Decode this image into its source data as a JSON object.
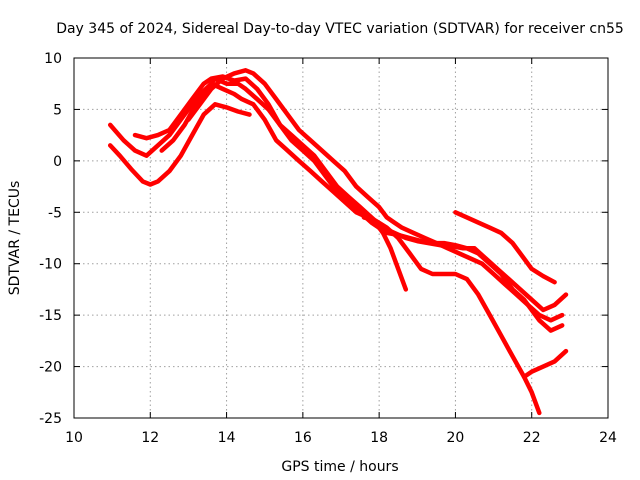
{
  "chart_data": {
    "type": "line",
    "title": "Day 345 of 2024, Sidereal Day-to-day VTEC variation (SDTVAR) for receiver cn55",
    "xlabel": "GPS time / hours",
    "ylabel": "SDTVAR / TECUs",
    "xlim": [
      10,
      24
    ],
    "ylim": [
      -25,
      10
    ],
    "xticks": [
      "10",
      "12",
      "14",
      "16",
      "18",
      "20",
      "22",
      "24"
    ],
    "yticks": [
      "10",
      "5",
      "0",
      "-5",
      "-10",
      "-15",
      "-20",
      "-25"
    ],
    "grid": true,
    "color": "#ff0000",
    "series": [
      {
        "name": "trace-1",
        "x": [
          10.95,
          11.2,
          11.5,
          11.8,
          12.0,
          12.2,
          12.5,
          12.8,
          13.1,
          13.4,
          13.7,
          14.0,
          14.3,
          14.6
        ],
        "y": [
          1.5,
          0.5,
          -0.8,
          -2.0,
          -2.3,
          -2.0,
          -1.0,
          0.5,
          2.5,
          4.5,
          5.5,
          5.2,
          4.8,
          4.5
        ]
      },
      {
        "name": "trace-2",
        "x": [
          10.95,
          11.3,
          11.6,
          11.9,
          12.2,
          12.5,
          12.8,
          13.1,
          13.4,
          13.6,
          13.9,
          14.2,
          14.4,
          14.7,
          15.0,
          15.3,
          15.6,
          15.9,
          16.2,
          16.5,
          16.8,
          17.1,
          17.4,
          17.7,
          17.9,
          18.1,
          18.3,
          18.5,
          18.7
        ],
        "y": [
          3.5,
          2.0,
          1.0,
          0.5,
          1.5,
          2.5,
          4.0,
          5.5,
          6.8,
          7.5,
          7.0,
          6.5,
          6.0,
          5.5,
          4.0,
          2.0,
          1.0,
          0.0,
          -1.0,
          -2.0,
          -3.0,
          -4.0,
          -5.0,
          -5.5,
          -6.0,
          -7.0,
          -8.5,
          -10.5,
          -12.5
        ]
      },
      {
        "name": "trace-3",
        "x": [
          11.6,
          11.9,
          12.2,
          12.5,
          12.8,
          13.1,
          13.4,
          13.6,
          13.9,
          14.2,
          14.5,
          14.8,
          15.1,
          15.4,
          15.7,
          16.0,
          16.3,
          16.6,
          16.9,
          17.2,
          17.5,
          17.8,
          18.0,
          18.2,
          18.5,
          18.8,
          19.1,
          19.4,
          19.7,
          20.0,
          20.3,
          20.6,
          20.9,
          21.2,
          21.5,
          21.8,
          22.0,
          22.2,
          22.5,
          22.8
        ],
        "y": [
          2.5,
          2.2,
          2.5,
          3.0,
          4.5,
          6.0,
          7.5,
          8.0,
          8.2,
          7.8,
          8.0,
          7.0,
          5.5,
          3.5,
          2.0,
          1.0,
          0.0,
          -1.5,
          -3.0,
          -4.0,
          -5.0,
          -6.0,
          -6.5,
          -7.0,
          -7.2,
          -7.5,
          -7.8,
          -8.0,
          -8.0,
          -8.2,
          -8.5,
          -9.0,
          -10.0,
          -11.0,
          -12.5,
          -13.5,
          -14.5,
          -15.5,
          -16.5,
          -16.0
        ]
      },
      {
        "name": "trace-4",
        "x": [
          12.3,
          12.6,
          12.9,
          13.2,
          13.5,
          13.7,
          14.0,
          14.3,
          14.5,
          14.8,
          15.1,
          15.4,
          15.7,
          16.0,
          16.3,
          16.6,
          16.9,
          17.2,
          17.5,
          17.8,
          18.1,
          18.4,
          18.7,
          19.0,
          19.3,
          19.6,
          19.9,
          20.2,
          20.5,
          20.8,
          21.1,
          21.4,
          21.7,
          22.0,
          22.3,
          22.6,
          22.9
        ],
        "y": [
          1.0,
          2.0,
          3.5,
          5.5,
          7.0,
          8.0,
          7.5,
          7.5,
          7.0,
          6.0,
          5.0,
          3.5,
          2.5,
          1.5,
          0.5,
          -1.0,
          -2.5,
          -3.5,
          -4.5,
          -5.5,
          -6.5,
          -7.0,
          -7.5,
          -7.8,
          -8.0,
          -8.2,
          -8.3,
          -8.5,
          -8.5,
          -9.5,
          -10.5,
          -11.5,
          -12.5,
          -13.5,
          -14.5,
          -14.0,
          -13.0
        ]
      },
      {
        "name": "trace-5",
        "x": [
          13.0,
          13.3,
          13.6,
          13.9,
          14.2,
          14.5,
          14.7,
          15.0,
          15.3,
          15.6,
          15.9,
          16.2,
          16.5,
          16.8,
          17.1,
          17.4,
          17.7,
          18.0,
          18.2,
          18.4,
          18.6,
          18.9,
          19.2,
          19.5,
          19.8,
          20.1,
          20.4,
          20.7,
          21.0,
          21.3,
          21.6,
          21.9,
          22.2,
          22.5,
          22.8
        ],
        "y": [
          4.0,
          5.5,
          7.0,
          8.0,
          8.5,
          8.8,
          8.5,
          7.5,
          6.0,
          4.5,
          3.0,
          2.0,
          1.0,
          0.0,
          -1.0,
          -2.5,
          -3.5,
          -4.5,
          -5.5,
          -6.0,
          -6.5,
          -7.0,
          -7.5,
          -8.0,
          -8.5,
          -9.0,
          -9.5,
          -10.0,
          -11.0,
          -12.0,
          -13.0,
          -14.0,
          -15.0,
          -15.5,
          -15.0
        ]
      },
      {
        "name": "trace-6",
        "x": [
          17.6,
          17.9,
          18.2,
          18.5,
          18.8,
          19.1,
          19.4,
          19.7,
          20.0,
          20.3,
          20.6,
          20.9,
          21.2,
          21.5,
          21.8,
          22.0,
          22.2
        ],
        "y": [
          -5.5,
          -5.8,
          -6.5,
          -7.5,
          -9.0,
          -10.5,
          -11.0,
          -11.0,
          -11.0,
          -11.5,
          -13.0,
          -15.0,
          -17.0,
          -19.0,
          -21.0,
          -22.5,
          -24.5
        ]
      },
      {
        "name": "trace-7",
        "x": [
          20.0,
          20.3,
          20.6,
          20.9,
          21.2,
          21.5,
          21.8,
          22.0,
          22.3,
          22.6
        ],
        "y": [
          -5.0,
          -5.5,
          -6.0,
          -6.5,
          -7.0,
          -8.0,
          -9.5,
          -10.5,
          -11.2,
          -11.8
        ]
      },
      {
        "name": "trace-8",
        "x": [
          21.8,
          22.0,
          22.3,
          22.6,
          22.9
        ],
        "y": [
          -21.0,
          -20.5,
          -20.0,
          -19.5,
          -18.5
        ]
      }
    ]
  }
}
